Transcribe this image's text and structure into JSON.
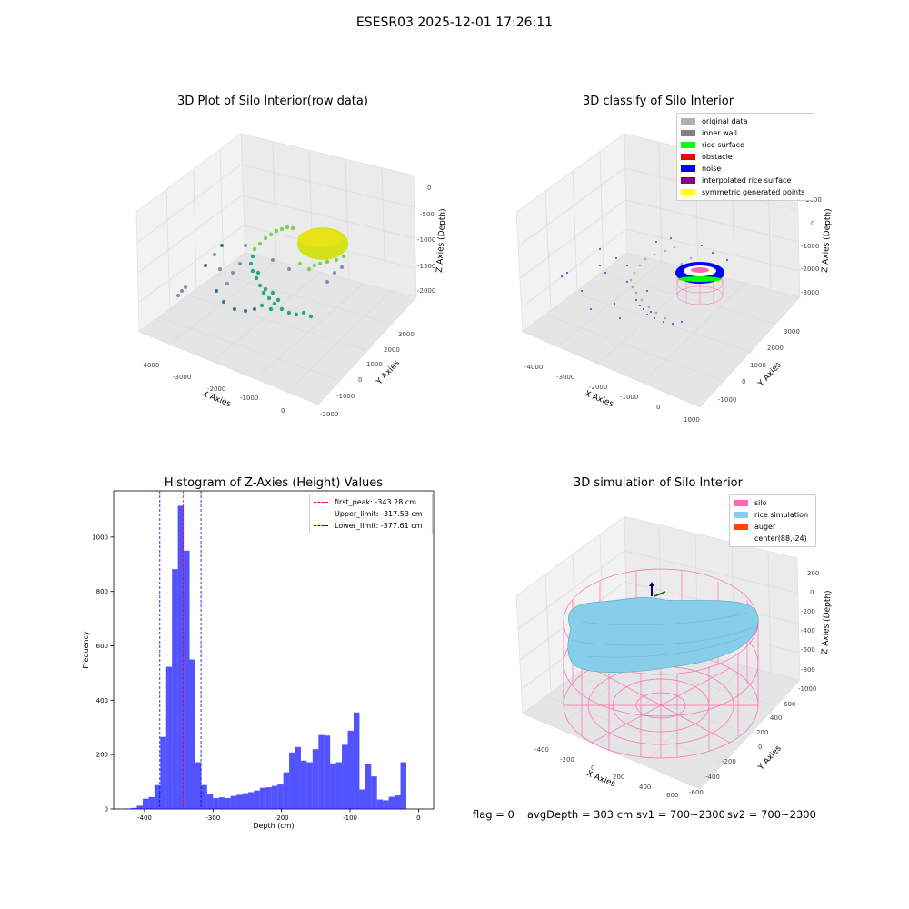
{
  "suptitle": "ESESR03 2025-12-01 17:26:11",
  "panels": {
    "raw": {
      "title": "3D Plot of Silo Interior(row data)",
      "x_label": "X Axies",
      "y_label": "Y Axies",
      "z_label": "Z Axies (Depth)",
      "x_ticks": [
        "-4000",
        "-3000",
        "-2000",
        "-1000",
        "0"
      ],
      "y_ticks": [
        "-2000",
        "-1000",
        "0",
        "1000",
        "2000",
        "3000"
      ],
      "z_ticks": [
        "0",
        "-500",
        "-1000",
        "-1500",
        "-2000"
      ]
    },
    "classify": {
      "title": "3D classify of Silo Interior",
      "x_label": "X Axies",
      "y_label": "Y Axies",
      "z_label": "Z Axies (Depth)",
      "x_ticks": [
        "-4000",
        "-3000",
        "-2000",
        "-1000",
        "0",
        "1000"
      ],
      "y_ticks": [
        "-1000",
        "0",
        "1000",
        "2000",
        "3000"
      ],
      "z_ticks": [
        "1000",
        "0",
        "-1000",
        "-2000",
        "-3000"
      ],
      "legend": [
        {
          "label": "original data",
          "color": "#b0b0b0"
        },
        {
          "label": "inner wall",
          "color": "#808080"
        },
        {
          "label": "rice surface",
          "color": "#00ff00"
        },
        {
          "label": "obstacle",
          "color": "#ff0000"
        },
        {
          "label": "noise",
          "color": "#0000ff"
        },
        {
          "label": "interpolated rice surface",
          "color": "#800080"
        },
        {
          "label": "symmetric generated points",
          "color": "#ffff00"
        }
      ]
    },
    "histogram": {
      "title": "Histogram of Z-Axies (Height) Values",
      "legend": [
        {
          "label": "first_peak: -343.28 cm",
          "color": "#ff0000"
        },
        {
          "label": "Upper_limit: -317.53 cm",
          "color": "#0000ff"
        },
        {
          "label": "Lower_limit: -377.61 cm",
          "color": "#0000ff"
        }
      ]
    },
    "simulation": {
      "title": "3D simulation of Silo Interior",
      "x_label": "X Axies",
      "y_label": "Y Axies",
      "z_label": "Z Axies (Depth)",
      "x_ticks": [
        "-400",
        "-200",
        "0",
        "200",
        "400",
        "600"
      ],
      "y_ticks": [
        "-600",
        "-400",
        "-200",
        "0",
        "200",
        "400",
        "600"
      ],
      "z_ticks": [
        "200",
        "0",
        "-200",
        "-400",
        "-600",
        "-800",
        "-1000"
      ],
      "legend": [
        {
          "label": "silo",
          "color": "#ff69b4"
        },
        {
          "label": "rice simulation",
          "color": "#87ceeb"
        },
        {
          "label": "auger",
          "color": "#ff4500"
        },
        {
          "label": "center(88,-24)",
          "color": ""
        }
      ]
    }
  },
  "status": {
    "flag": "flag = 0",
    "avg": "avgDepth = 303 cm",
    "sv1": "sv1 = 700~2300",
    "sv2": "sv2 = 700~2300"
  },
  "chart_data": [
    {
      "type": "bar",
      "title": "Histogram of Z-Axies (Height) Values",
      "xlabel": "Depth (cm)",
      "ylabel": "Frequency",
      "xlim": [
        -445,
        22
      ],
      "ylim": [
        0,
        1170
      ],
      "x_ticks": [
        -400,
        -300,
        -200,
        -100,
        0
      ],
      "y_ticks": [
        0,
        200,
        400,
        600,
        800,
        1000
      ],
      "bin_width": 8.55,
      "bin_starts": [
        -428.25,
        -419.7,
        -411.15,
        -402.6,
        -394.05,
        -385.5,
        -376.95,
        -368.4,
        -359.85,
        -351.3,
        -342.75,
        -334.2,
        -325.65,
        -317.1,
        -308.55,
        -300.0,
        -291.45,
        -282.9,
        -274.35,
        -265.8,
        -257.25,
        -248.7,
        -240.15,
        -231.6,
        -223.05,
        -214.5,
        -205.95,
        -197.4,
        -188.85,
        -180.3,
        -171.75,
        -163.2,
        -154.65,
        -146.1,
        -137.55,
        -129.0,
        -120.45,
        -111.9,
        -103.35,
        -94.8,
        -86.25,
        -77.7,
        -69.15,
        -60.6,
        -52.05,
        -43.5,
        -34.95,
        -26.4,
        -17.85,
        -9.3
      ],
      "values": [
        2,
        4,
        12,
        38,
        44,
        88,
        265,
        523,
        882,
        1115,
        950,
        550,
        172,
        88,
        55,
        40,
        43,
        40,
        48,
        52,
        58,
        62,
        68,
        78,
        80,
        85,
        90,
        135,
        208,
        228,
        178,
        172,
        220,
        272,
        270,
        168,
        172,
        236,
        288,
        355,
        72,
        165,
        120,
        35,
        32,
        45,
        50,
        172,
        0,
        0
      ],
      "series_color": "#0000ff",
      "vlines": [
        {
          "name": "first_peak: -343.28 cm",
          "x": -343.28,
          "color": "#ff0000"
        },
        {
          "name": "Upper_limit: -317.53 cm",
          "x": -317.53,
          "color": "#0000ff"
        },
        {
          "name": "Lower_limit: -377.61 cm",
          "x": -377.61,
          "color": "#0000ff"
        }
      ],
      "legend_position": "upper right"
    }
  ]
}
